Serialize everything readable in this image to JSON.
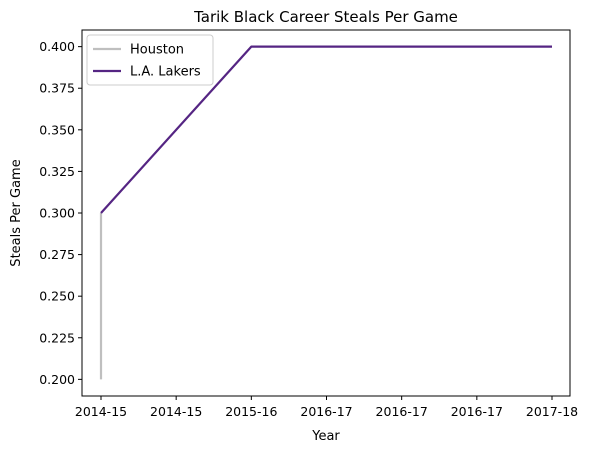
{
  "chart_data": {
    "type": "line",
    "title": "Tarik Black Career Steals Per Game",
    "xlabel": "Year",
    "ylabel": "Steals Per Game",
    "x_tick_labels": [
      "2014-15",
      "2014-15",
      "2015-16",
      "2016-17",
      "2016-17",
      "2016-17",
      "2017-18"
    ],
    "ylim": [
      0.19,
      0.41
    ],
    "y_ticks": [
      0.2,
      0.225,
      0.25,
      0.275,
      0.3,
      0.325,
      0.35,
      0.375,
      0.4
    ],
    "y_tick_labels": [
      "0.200",
      "0.225",
      "0.250",
      "0.275",
      "0.300",
      "0.325",
      "0.350",
      "0.375",
      "0.400"
    ],
    "grid": false,
    "legend_position": "top-left",
    "series": [
      {
        "name": "Houston",
        "color": "#bfbfbf",
        "points": [
          {
            "x": "2014-15",
            "y": 0.2
          },
          {
            "x": "2014-15",
            "y": 0.3
          }
        ]
      },
      {
        "name": "L.A. Lakers",
        "color": "#552583",
        "points": [
          {
            "x": "2014-15",
            "y": 0.3
          },
          {
            "x": "2015-16",
            "y": 0.4
          },
          {
            "x": "2016-17",
            "y": 0.4
          },
          {
            "x": "2017-18",
            "y": 0.4
          }
        ]
      }
    ]
  }
}
